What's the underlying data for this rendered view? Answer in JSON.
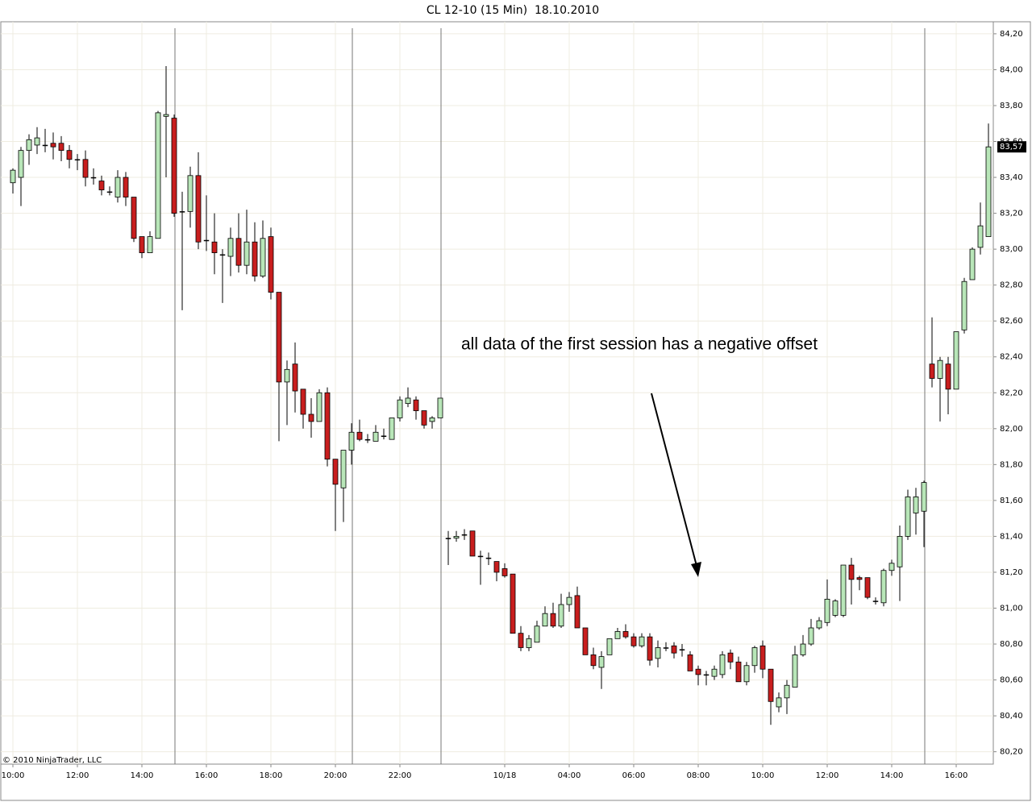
{
  "chart_data": {
    "type": "candlestick",
    "title": "CL 12-10 (15 Min)  18.10.2010",
    "annotation": "all data of the first session has a negative offset",
    "copyright": "© 2010 NinjaTrader, LLC",
    "categories": [
      "10:00",
      null,
      null,
      null,
      null,
      null,
      null,
      null,
      "12:00",
      null,
      null,
      null,
      null,
      null,
      null,
      null,
      "14:00",
      null,
      null,
      null,
      null,
      null,
      null,
      null,
      "16:00",
      null,
      null,
      null,
      null,
      null,
      null,
      null,
      "18:00",
      null,
      null,
      null,
      null,
      null,
      null,
      null,
      "20:00",
      null,
      null,
      null,
      null,
      null,
      null,
      null,
      "22:00",
      null,
      null,
      null,
      null,
      null,
      null,
      null,
      null,
      null,
      null,
      null,
      null,
      "10/18",
      null,
      null,
      null,
      null,
      null,
      null,
      null,
      "04:00",
      null,
      null,
      null,
      null,
      null,
      null,
      null,
      "06:00",
      null,
      null,
      null,
      null,
      null,
      null,
      null,
      "08:00",
      null,
      null,
      null,
      null,
      null,
      null,
      null,
      "10:00",
      null,
      null,
      null,
      null,
      null,
      null,
      null,
      "12:00",
      null,
      null,
      null,
      null,
      null,
      null,
      null,
      "14:00",
      null,
      null,
      null,
      null,
      null,
      null,
      null,
      "16:00",
      null,
      null,
      null,
      null
    ],
    "open": [
      83.37,
      83.4,
      83.55,
      83.58,
      83.58,
      83.59,
      83.59,
      83.55,
      83.5,
      83.5,
      83.4,
      83.38,
      83.32,
      83.29,
      83.4,
      83.29,
      83.07,
      82.98,
      83.06,
      83.74,
      83.73,
      83.21,
      83.21,
      83.41,
      83.05,
      83.04,
      82.97,
      82.96,
      83.06,
      82.91,
      83.04,
      82.85,
      83.07,
      82.76,
      82.26,
      82.36,
      82.22,
      82.08,
      82.04,
      82.2,
      81.83,
      81.67,
      81.88,
      81.98,
      81.94,
      81.93,
      81.96,
      81.94,
      82.06,
      82.14,
      82.16,
      82.1,
      82.04,
      82.06,
      81.39,
      81.39,
      81.41,
      81.43,
      81.29,
      81.28,
      81.26,
      81.22,
      81.19,
      80.86,
      80.78,
      80.81,
      80.9,
      80.97,
      80.9,
      81.02,
      81.07,
      80.89,
      80.74,
      80.67,
      80.74,
      80.83,
      80.87,
      80.84,
      80.79,
      80.84,
      80.72,
      80.78,
      80.79,
      80.77,
      80.74,
      80.66,
      80.63,
      80.62,
      80.63,
      80.75,
      80.7,
      80.59,
      80.68,
      80.79,
      80.66,
      80.45,
      80.5,
      80.56,
      80.74,
      80.8,
      80.89,
      80.92,
      80.96,
      80.96,
      81.24,
      81.17,
      81.17,
      81.04,
      81.03,
      81.21,
      81.23,
      81.4,
      81.53,
      81.54,
      82.36,
      82.28,
      82.36,
      82.22,
      82.55,
      82.83,
      83.01,
      83.07
    ],
    "high": [
      83.45,
      83.57,
      83.64,
      83.68,
      83.67,
      83.65,
      83.63,
      83.58,
      83.53,
      83.55,
      83.45,
      83.41,
      83.35,
      83.44,
      83.43,
      83.29,
      83.07,
      83.1,
      83.77,
      84.02,
      83.75,
      83.32,
      83.46,
      83.54,
      83.3,
      83.2,
      83.0,
      83.12,
      83.2,
      83.22,
      83.15,
      83.16,
      83.12,
      82.76,
      82.38,
      82.48,
      82.22,
      82.17,
      82.22,
      82.23,
      81.83,
      81.88,
      82.03,
      82.05,
      81.97,
      82.02,
      82.0,
      82.06,
      82.18,
      82.23,
      82.18,
      82.1,
      82.07,
      82.17,
      81.43,
      81.43,
      81.44,
      81.43,
      81.32,
      81.31,
      81.26,
      81.25,
      81.19,
      80.9,
      80.85,
      80.93,
      81.01,
      81.03,
      81.08,
      81.09,
      81.12,
      80.89,
      80.78,
      80.76,
      80.83,
      80.89,
      80.91,
      80.86,
      80.86,
      80.86,
      80.82,
      80.81,
      80.81,
      80.8,
      80.76,
      80.68,
      80.65,
      80.68,
      80.76,
      80.77,
      80.73,
      80.7,
      80.79,
      80.82,
      80.66,
      80.53,
      80.6,
      80.79,
      80.85,
      80.94,
      80.95,
      81.16,
      81.05,
      81.24,
      81.28,
      81.18,
      81.17,
      81.06,
      81.22,
      81.27,
      81.46,
      81.66,
      81.67,
      81.71,
      82.62,
      82.4,
      82.4,
      82.54,
      82.84,
      83.01,
      83.26,
      83.7
    ],
    "low": [
      83.31,
      83.24,
      83.47,
      83.53,
      83.54,
      83.5,
      83.49,
      83.45,
      83.44,
      83.35,
      83.36,
      83.3,
      83.3,
      83.26,
      83.24,
      83.04,
      82.95,
      82.98,
      83.06,
      83.4,
      83.18,
      82.66,
      83.12,
      83.0,
      82.99,
      82.86,
      82.7,
      82.85,
      82.87,
      82.86,
      82.82,
      82.84,
      82.72,
      81.93,
      82.02,
      82.09,
      82.0,
      81.95,
      82.04,
      81.79,
      81.43,
      81.48,
      81.8,
      81.93,
      81.92,
      81.93,
      81.94,
      81.94,
      82.04,
      82.12,
      82.05,
      82.0,
      82.0,
      82.06,
      81.24,
      81.37,
      81.38,
      81.29,
      81.13,
      81.24,
      81.15,
      81.17,
      80.86,
      80.76,
      80.76,
      80.81,
      80.9,
      80.89,
      80.89,
      80.98,
      80.89,
      80.74,
      80.66,
      80.55,
      80.74,
      80.83,
      80.83,
      80.78,
      80.78,
      80.68,
      80.67,
      80.76,
      80.72,
      80.73,
      80.65,
      80.57,
      80.57,
      80.6,
      80.61,
      80.66,
      80.59,
      80.57,
      80.64,
      80.61,
      80.35,
      80.42,
      80.41,
      80.56,
      80.73,
      80.79,
      80.88,
      80.9,
      80.95,
      80.95,
      81.02,
      81.1,
      81.05,
      81.02,
      81.01,
      81.18,
      81.04,
      81.38,
      81.41,
      81.34,
      82.23,
      82.04,
      82.08,
      82.22,
      82.53,
      82.83,
      82.97,
      83.07
    ],
    "close": [
      83.44,
      83.55,
      83.61,
      83.62,
      83.58,
      83.57,
      83.55,
      83.5,
      83.5,
      83.4,
      83.4,
      83.33,
      83.32,
      83.4,
      83.29,
      83.06,
      82.98,
      83.07,
      83.76,
      83.75,
      83.2,
      83.21,
      83.41,
      83.04,
      83.05,
      82.98,
      82.97,
      83.06,
      82.91,
      83.04,
      82.85,
      83.06,
      82.76,
      82.26,
      82.33,
      82.21,
      82.08,
      82.04,
      82.2,
      81.83,
      81.69,
      81.88,
      81.98,
      81.94,
      81.94,
      81.98,
      81.96,
      82.06,
      82.16,
      82.17,
      82.1,
      82.02,
      82.06,
      82.17,
      81.39,
      81.4,
      81.41,
      81.29,
      81.29,
      81.28,
      81.2,
      81.18,
      80.86,
      80.78,
      80.83,
      80.9,
      80.97,
      80.9,
      81.02,
      81.06,
      80.89,
      80.74,
      80.68,
      80.73,
      80.83,
      80.87,
      80.84,
      80.79,
      80.84,
      80.71,
      80.78,
      80.78,
      80.75,
      80.77,
      80.65,
      80.63,
      80.63,
      80.66,
      80.74,
      80.7,
      80.59,
      80.68,
      80.78,
      80.66,
      80.48,
      80.5,
      80.57,
      80.74,
      80.8,
      80.89,
      80.93,
      81.05,
      81.04,
      81.24,
      81.16,
      81.16,
      81.06,
      81.04,
      81.21,
      81.25,
      81.4,
      81.62,
      81.62,
      81.7,
      82.28,
      82.38,
      82.22,
      82.54,
      82.82,
      83.0,
      83.13,
      83.57
    ],
    "up_color": "#b8e6b8",
    "down_color": "#c81e1e",
    "ylim": [
      80.14,
      84.24
    ],
    "yticks": [
      {
        "value": 80.2,
        "label": "80,20"
      },
      {
        "value": 80.4,
        "label": "80,40"
      },
      {
        "value": 80.6,
        "label": "80,60"
      },
      {
        "value": 80.8,
        "label": "80,80"
      },
      {
        "value": 81.0,
        "label": "81,00"
      },
      {
        "value": 81.2,
        "label": "81,20"
      },
      {
        "value": 81.4,
        "label": "81,40"
      },
      {
        "value": 81.6,
        "label": "81,60"
      },
      {
        "value": 81.8,
        "label": "81,80"
      },
      {
        "value": 82.0,
        "label": "82,00"
      },
      {
        "value": 82.2,
        "label": "82,20"
      },
      {
        "value": 82.4,
        "label": "82,40"
      },
      {
        "value": 82.6,
        "label": "82,60"
      },
      {
        "value": 82.8,
        "label": "82,80"
      },
      {
        "value": 83.0,
        "label": "83,00"
      },
      {
        "value": 83.2,
        "label": "83,20"
      },
      {
        "value": 83.4,
        "label": "83,40"
      },
      {
        "value": 83.6,
        "label": "83,60"
      },
      {
        "value": 83.8,
        "label": "83,80"
      },
      {
        "value": 84.0,
        "label": "84,00"
      },
      {
        "value": 84.2,
        "label": "84,20"
      }
    ],
    "last_price": {
      "value": 83.57,
      "label": "83,57"
    },
    "grid": true
  }
}
